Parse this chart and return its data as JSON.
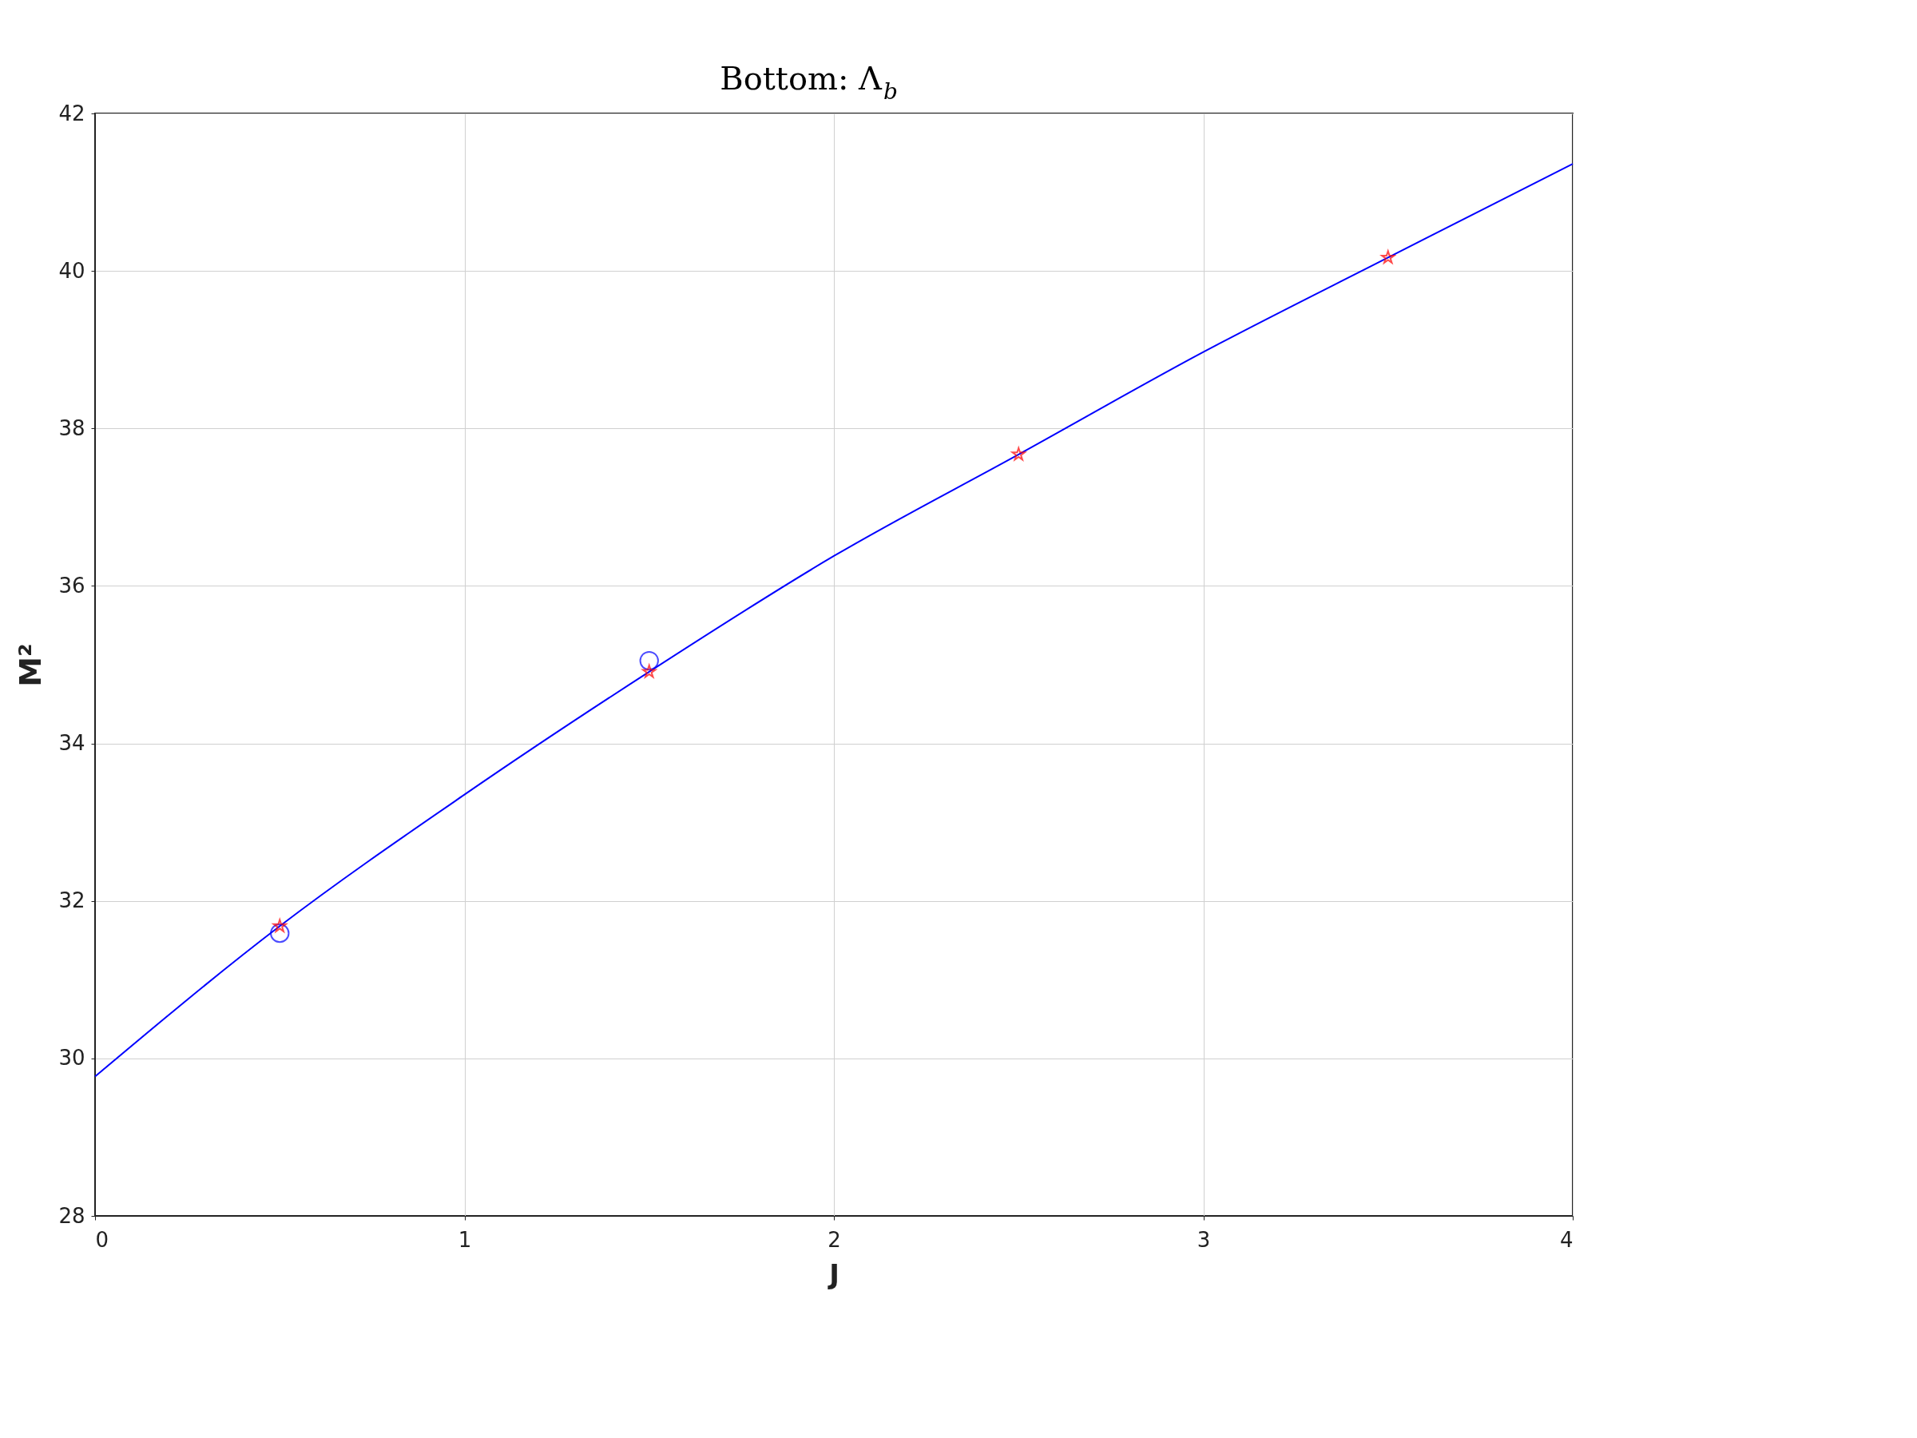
{
  "chart_data": {
    "type": "scatter",
    "title": "Bottom: Λ$_{b}$",
    "xlabel": "J",
    "ylabel": "M²",
    "xlim": [
      0,
      4
    ],
    "xticks": [
      0,
      1,
      2,
      3,
      4
    ],
    "ylim": [
      28,
      42
    ],
    "yticks": [
      28,
      30,
      32,
      34,
      36,
      38,
      40,
      42
    ],
    "grid": true,
    "series": [
      {
        "type": "line",
        "color": "#0000ff",
        "marker": "none",
        "line_style": "solid",
        "x": [
          0,
          0.5,
          1,
          1.5,
          2,
          2.5,
          3,
          3.5,
          4
        ],
        "values": [
          29.77,
          31.68,
          33.35,
          34.91,
          36.38,
          37.67,
          38.97,
          40.17,
          41.36
        ]
      },
      {
        "color": "#0000ff",
        "marker": "circle",
        "x": [
          0.5,
          1.5
        ],
        "values": [
          31.59,
          35.05
        ]
      },
      {
        "color": "#ff0000",
        "marker": "star",
        "x": [
          0.5,
          1.5,
          2.5,
          3.5
        ],
        "values": [
          31.68,
          34.91,
          37.67,
          40.17
        ]
      }
    ]
  }
}
